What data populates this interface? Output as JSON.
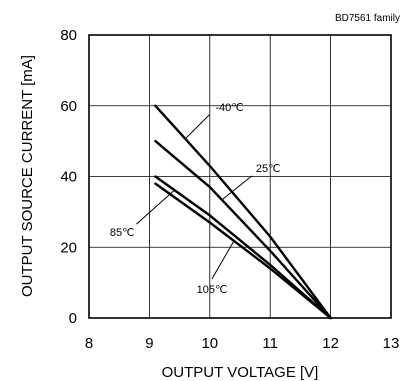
{
  "chart_data": {
    "type": "line",
    "family_label": "BD7561 family",
    "xlabel": "OUTPUT VOLTAGE [V]",
    "ylabel": "OUTPUT SOURCE CURRENT [mA]",
    "xlim": [
      8,
      13
    ],
    "ylim": [
      0,
      80
    ],
    "x_ticks": [
      8,
      9,
      10,
      11,
      12,
      13
    ],
    "y_ticks": [
      0,
      20,
      40,
      60,
      80
    ],
    "grid": true,
    "series": [
      {
        "name": "-40℃",
        "x": [
          9.1,
          10.0,
          11.0,
          12.0
        ],
        "y": [
          60,
          43,
          23,
          0
        ]
      },
      {
        "name": "25℃",
        "x": [
          9.1,
          10.0,
          11.0,
          12.0
        ],
        "y": [
          50,
          37,
          19,
          0
        ]
      },
      {
        "name": "85℃",
        "x": [
          9.1,
          10.0,
          11.0,
          12.0
        ],
        "y": [
          40,
          29,
          15,
          0
        ]
      },
      {
        "name": "105℃",
        "x": [
          9.1,
          10.0,
          11.0,
          12.0
        ],
        "y": [
          38,
          27,
          14,
          0
        ]
      }
    ],
    "annotations": [
      {
        "series": "-40℃",
        "label": "-40℃"
      },
      {
        "series": "25℃",
        "label": "25℃"
      },
      {
        "series": "85℃",
        "label": "85℃"
      },
      {
        "series": "105℃",
        "label": "105℃"
      }
    ]
  }
}
